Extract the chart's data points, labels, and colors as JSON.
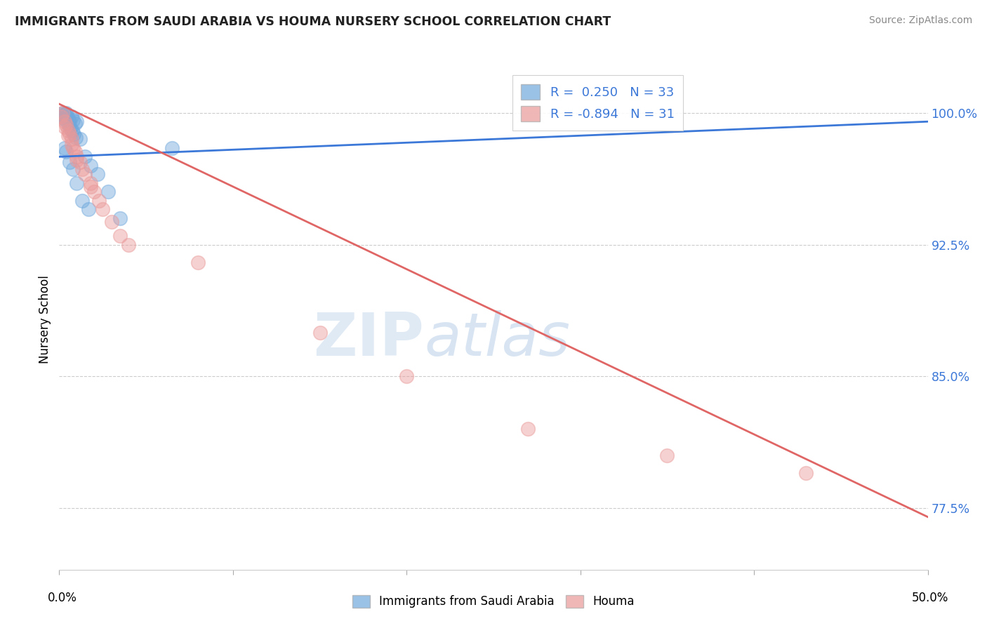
{
  "title": "IMMIGRANTS FROM SAUDI ARABIA VS HOUMA NURSERY SCHOOL CORRELATION CHART",
  "source": "Source: ZipAtlas.com",
  "ylabel": "Nursery School",
  "xlim": [
    0.0,
    50.0
  ],
  "ylim": [
    74.0,
    102.5
  ],
  "yticks": [
    77.5,
    85.0,
    92.5,
    100.0
  ],
  "ytick_labels": [
    "77.5%",
    "85.0%",
    "92.5%",
    "100.0%"
  ],
  "blue_R": 0.25,
  "blue_N": 33,
  "pink_R": -0.894,
  "pink_N": 31,
  "blue_color": "#6fa8dc",
  "pink_color": "#ea9999",
  "blue_line_color": "#3c78d8",
  "pink_line_color": "#e06666",
  "legend_blue_label": "Immigrants from Saudi Arabia",
  "legend_pink_label": "Houma",
  "watermark_zip": "ZIP",
  "watermark_atlas": "atlas",
  "blue_scatter_x": [
    0.1,
    0.2,
    0.3,
    0.4,
    0.5,
    0.6,
    0.7,
    0.8,
    0.9,
    1.0,
    0.15,
    0.25,
    0.35,
    0.45,
    0.55,
    0.65,
    0.75,
    0.85,
    0.95,
    1.2,
    1.5,
    1.8,
    2.2,
    2.8,
    3.5,
    0.3,
    0.4,
    0.6,
    0.8,
    1.0,
    1.3,
    1.7,
    6.5
  ],
  "blue_scatter_y": [
    99.8,
    100.0,
    99.9,
    100.0,
    99.7,
    99.5,
    99.8,
    99.6,
    99.4,
    99.5,
    99.9,
    99.7,
    99.6,
    99.8,
    99.3,
    99.1,
    99.0,
    98.8,
    98.6,
    98.5,
    97.5,
    97.0,
    96.5,
    95.5,
    94.0,
    98.0,
    97.8,
    97.2,
    96.8,
    96.0,
    95.0,
    94.5,
    98.0
  ],
  "pink_scatter_x": [
    0.1,
    0.2,
    0.3,
    0.4,
    0.5,
    0.6,
    0.7,
    0.8,
    0.9,
    1.0,
    1.2,
    1.5,
    1.8,
    2.0,
    2.5,
    3.0,
    4.0,
    0.3,
    0.5,
    0.7,
    1.0,
    1.3,
    1.8,
    2.3,
    3.5,
    8.0,
    15.0,
    20.0,
    27.0,
    35.0,
    43.0
  ],
  "pink_scatter_y": [
    99.8,
    100.0,
    99.5,
    99.3,
    99.0,
    98.8,
    98.5,
    98.0,
    97.8,
    97.5,
    97.2,
    96.5,
    96.0,
    95.5,
    94.5,
    93.8,
    92.5,
    99.2,
    98.7,
    98.2,
    97.3,
    96.8,
    95.8,
    95.0,
    93.0,
    91.5,
    87.5,
    85.0,
    82.0,
    80.5,
    79.5
  ],
  "blue_line_x": [
    0.0,
    50.0
  ],
  "blue_line_y": [
    97.5,
    99.5
  ],
  "pink_line_x": [
    0.0,
    50.0
  ],
  "pink_line_y": [
    100.5,
    77.0
  ]
}
